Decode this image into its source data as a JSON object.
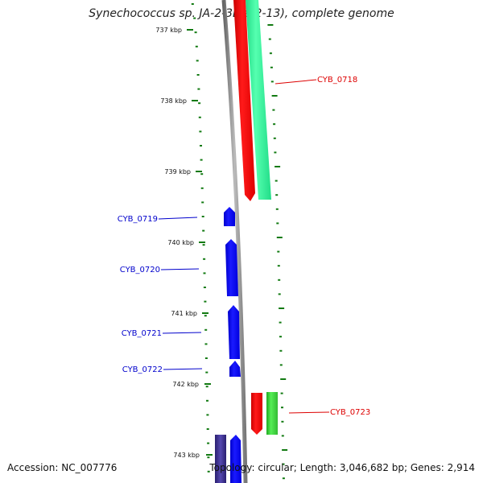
{
  "header": {
    "title": "Synechococcus sp. JA-2-3B'a(2-13), complete genome"
  },
  "footer": {
    "accession": "Accession: NC_007776",
    "topology": "Topology: circular; Length: 3,046,682 bp; Genes: 2,914"
  },
  "scale": {
    "ticks": [
      "737 kbp",
      "738 kbp",
      "739 kbp",
      "740 kbp",
      "741 kbp",
      "742 kbp",
      "743 kbp"
    ]
  },
  "genes": {
    "forward": [
      {
        "label": "CYB_0718",
        "color": "#ff0000"
      },
      {
        "label": "CYB_0723",
        "color": "#ff0000"
      }
    ],
    "reverse": [
      {
        "label": "CYB_0719",
        "color": "#0000ff"
      },
      {
        "label": "CYB_0720",
        "color": "#0000ff"
      },
      {
        "label": "CYB_0721",
        "color": "#0000ff"
      },
      {
        "label": "CYB_0722",
        "color": "#0000ff"
      }
    ]
  },
  "colors": {
    "cds": "#ff0000",
    "cds_reverse": "#0000ff",
    "rna": "#3cc83c",
    "rna_light": "#33ee99",
    "backbone": "#888888",
    "scale": "#127a12",
    "dark_feature": "#3a2f8a"
  }
}
